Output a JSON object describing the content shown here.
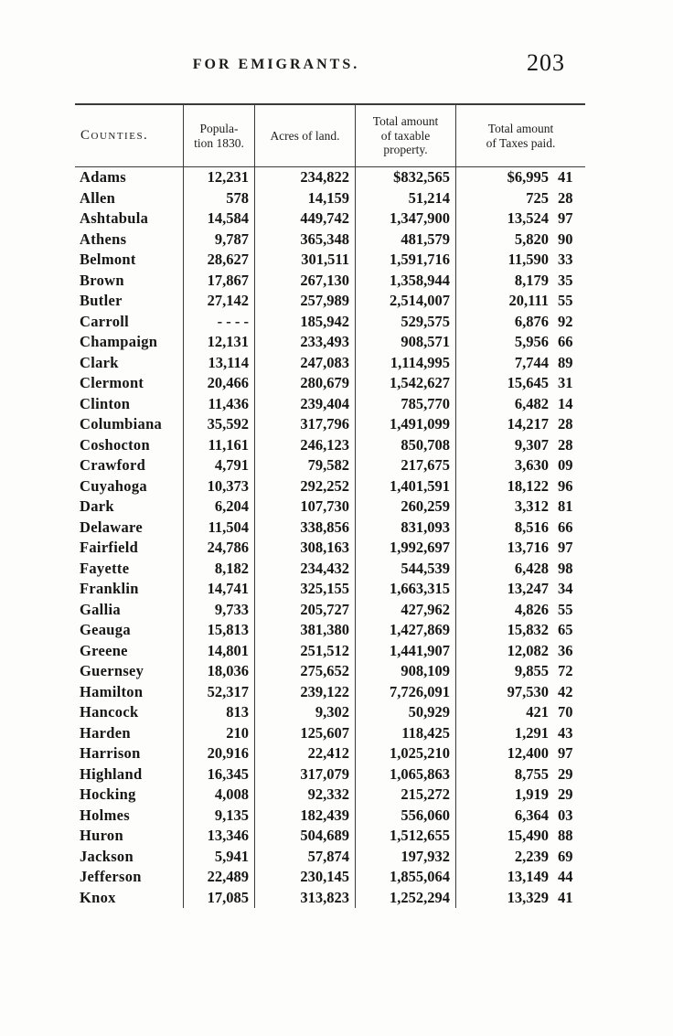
{
  "page": {
    "running_header": "FOR EMIGRANTS.",
    "page_number": "203"
  },
  "table": {
    "headers": {
      "counties": "Counties.",
      "population": [
        "Popula-",
        "tion 1830."
      ],
      "acres": "Acres of land.",
      "taxable": [
        "Total amount",
        "of taxable",
        "property."
      ],
      "taxes": [
        "Total amount",
        "of Taxes paid."
      ]
    },
    "rows": [
      {
        "county": "Adams",
        "population": "12,231",
        "acres": "234,822",
        "taxable": "$832,565",
        "taxes_dollars": "$6,995",
        "taxes_cents": "41"
      },
      {
        "county": "Allen",
        "population": "578",
        "acres": "14,159",
        "taxable": "51,214",
        "taxes_dollars": "725",
        "taxes_cents": "28"
      },
      {
        "county": "Ashtabula",
        "population": "14,584",
        "acres": "449,742",
        "taxable": "1,347,900",
        "taxes_dollars": "13,524",
        "taxes_cents": "97"
      },
      {
        "county": "Athens",
        "population": "9,787",
        "acres": "365,348",
        "taxable": "481,579",
        "taxes_dollars": "5,820",
        "taxes_cents": "90"
      },
      {
        "county": "Belmont",
        "population": "28,627",
        "acres": "301,511",
        "taxable": "1,591,716",
        "taxes_dollars": "11,590",
        "taxes_cents": "33"
      },
      {
        "county": "Brown",
        "population": "17,867",
        "acres": "267,130",
        "taxable": "1,358,944",
        "taxes_dollars": "8,179",
        "taxes_cents": "35"
      },
      {
        "county": "Butler",
        "population": "27,142",
        "acres": "257,989",
        "taxable": "2,514,007",
        "taxes_dollars": "20,111",
        "taxes_cents": "55"
      },
      {
        "county": "Carroll",
        "population": "- - - -",
        "acres": "185,942",
        "taxable": "529,575",
        "taxes_dollars": "6,876",
        "taxes_cents": "92"
      },
      {
        "county": "Champaign",
        "population": "12,131",
        "acres": "233,493",
        "taxable": "908,571",
        "taxes_dollars": "5,956",
        "taxes_cents": "66"
      },
      {
        "county": "Clark",
        "population": "13,114",
        "acres": "247,083",
        "taxable": "1,114,995",
        "taxes_dollars": "7,744",
        "taxes_cents": "89"
      },
      {
        "county": "Clermont",
        "population": "20,466",
        "acres": "280,679",
        "taxable": "1,542,627",
        "taxes_dollars": "15,645",
        "taxes_cents": "31"
      },
      {
        "county": "Clinton",
        "population": "11,436",
        "acres": "239,404",
        "taxable": "785,770",
        "taxes_dollars": "6,482",
        "taxes_cents": "14"
      },
      {
        "county": "Columbiana",
        "population": "35,592",
        "acres": "317,796",
        "taxable": "1,491,099",
        "taxes_dollars": "14,217",
        "taxes_cents": "28"
      },
      {
        "county": "Coshocton",
        "population": "11,161",
        "acres": "246,123",
        "taxable": "850,708",
        "taxes_dollars": "9,307",
        "taxes_cents": "28"
      },
      {
        "county": "Crawford",
        "population": "4,791",
        "acres": "79,582",
        "taxable": "217,675",
        "taxes_dollars": "3,630",
        "taxes_cents": "09"
      },
      {
        "county": "Cuyahoga",
        "population": "10,373",
        "acres": "292,252",
        "taxable": "1,401,591",
        "taxes_dollars": "18,122",
        "taxes_cents": "96"
      },
      {
        "county": "Dark",
        "population": "6,204",
        "acres": "107,730",
        "taxable": "260,259",
        "taxes_dollars": "3,312",
        "taxes_cents": "81"
      },
      {
        "county": "Delaware",
        "population": "11,504",
        "acres": "338,856",
        "taxable": "831,093",
        "taxes_dollars": "8,516",
        "taxes_cents": "66"
      },
      {
        "county": "Fairfield",
        "population": "24,786",
        "acres": "308,163",
        "taxable": "1,992,697",
        "taxes_dollars": "13,716",
        "taxes_cents": "97"
      },
      {
        "county": "Fayette",
        "population": "8,182",
        "acres": "234,432",
        "taxable": "544,539",
        "taxes_dollars": "6,428",
        "taxes_cents": "98"
      },
      {
        "county": "Franklin",
        "population": "14,741",
        "acres": "325,155",
        "taxable": "1,663,315",
        "taxes_dollars": "13,247",
        "taxes_cents": "34"
      },
      {
        "county": "Gallia",
        "population": "9,733",
        "acres": "205,727",
        "taxable": "427,962",
        "taxes_dollars": "4,826",
        "taxes_cents": "55"
      },
      {
        "county": "Geauga",
        "population": "15,813",
        "acres": "381,380",
        "taxable": "1,427,869",
        "taxes_dollars": "15,832",
        "taxes_cents": "65"
      },
      {
        "county": "Greene",
        "population": "14,801",
        "acres": "251,512",
        "taxable": "1,441,907",
        "taxes_dollars": "12,082",
        "taxes_cents": "36"
      },
      {
        "county": "Guernsey",
        "population": "18,036",
        "acres": "275,652",
        "taxable": "908,109",
        "taxes_dollars": "9,855",
        "taxes_cents": "72"
      },
      {
        "county": "Hamilton",
        "population": "52,317",
        "acres": "239,122",
        "taxable": "7,726,091",
        "taxes_dollars": "97,530",
        "taxes_cents": "42"
      },
      {
        "county": "Hancock",
        "population": "813",
        "acres": "9,302",
        "taxable": "50,929",
        "taxes_dollars": "421",
        "taxes_cents": "70"
      },
      {
        "county": "Harden",
        "population": "210",
        "acres": "125,607",
        "taxable": "118,425",
        "taxes_dollars": "1,291",
        "taxes_cents": "43"
      },
      {
        "county": "Harrison",
        "population": "20,916",
        "acres": "22,412",
        "taxable": "1,025,210",
        "taxes_dollars": "12,400",
        "taxes_cents": "97"
      },
      {
        "county": "Highland",
        "population": "16,345",
        "acres": "317,079",
        "taxable": "1,065,863",
        "taxes_dollars": "8,755",
        "taxes_cents": "29"
      },
      {
        "county": "Hocking",
        "population": "4,008",
        "acres": "92,332",
        "taxable": "215,272",
        "taxes_dollars": "1,919",
        "taxes_cents": "29"
      },
      {
        "county": "Holmes",
        "population": "9,135",
        "acres": "182,439",
        "taxable": "556,060",
        "taxes_dollars": "6,364",
        "taxes_cents": "03"
      },
      {
        "county": "Huron",
        "population": "13,346",
        "acres": "504,689",
        "taxable": "1,512,655",
        "taxes_dollars": "15,490",
        "taxes_cents": "88"
      },
      {
        "county": "Jackson",
        "population": "5,941",
        "acres": "57,874",
        "taxable": "197,932",
        "taxes_dollars": "2,239",
        "taxes_cents": "69"
      },
      {
        "county": "Jefferson",
        "population": "22,489",
        "acres": "230,145",
        "taxable": "1,855,064",
        "taxes_dollars": "13,149",
        "taxes_cents": "44"
      },
      {
        "county": "Knox",
        "population": "17,085",
        "acres": "313,823",
        "taxable": "1,252,294",
        "taxes_dollars": "13,329",
        "taxes_cents": "41"
      }
    ]
  }
}
